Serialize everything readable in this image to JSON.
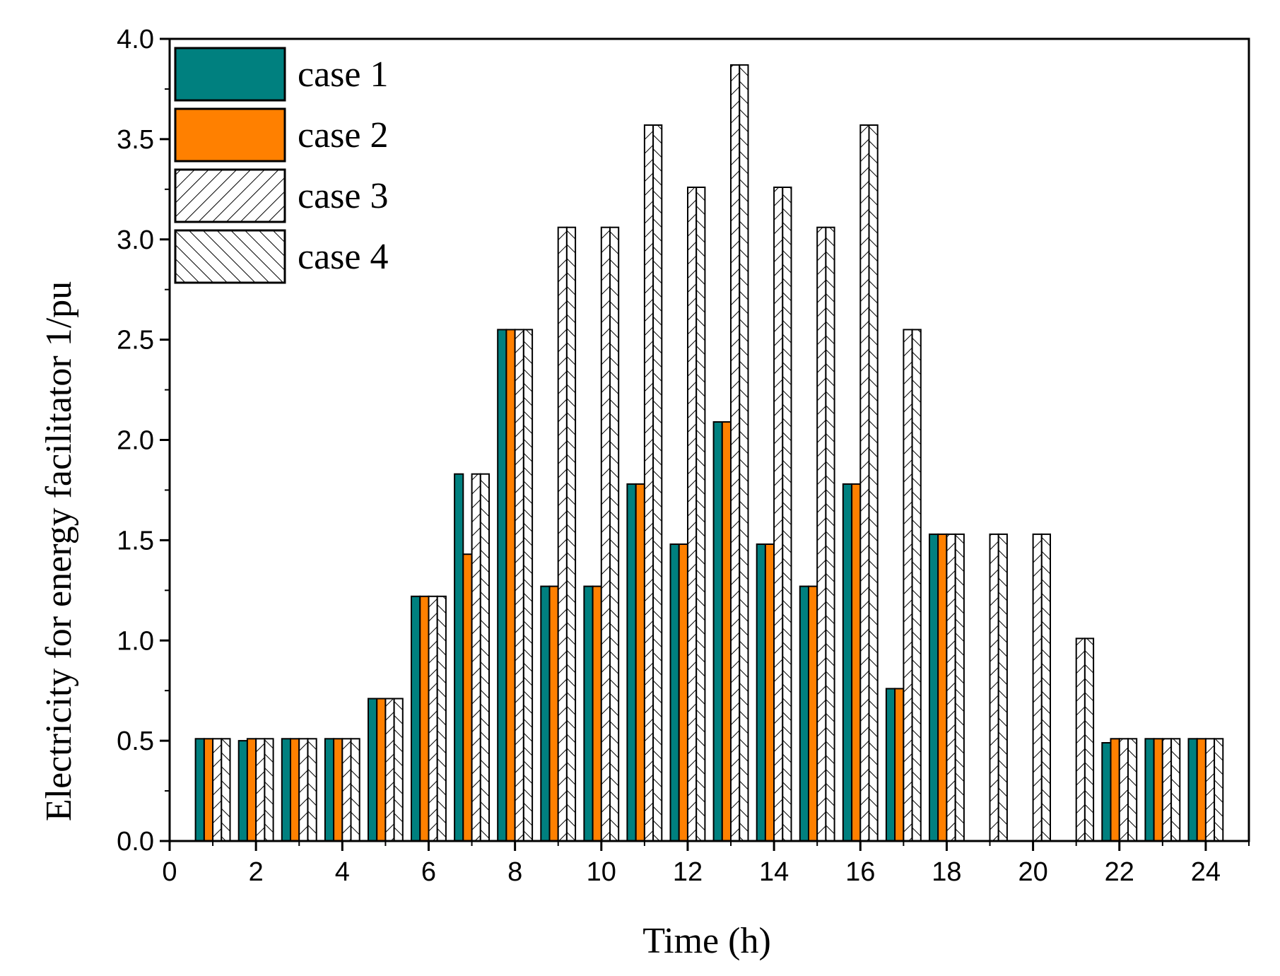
{
  "chart_data": {
    "type": "bar",
    "title": "",
    "xlabel": "Time (h)",
    "ylabel": "Electricity for energy facilitator 1/pu",
    "xlim": [
      0,
      25
    ],
    "ylim": [
      0,
      4.0
    ],
    "xticks": [
      "0",
      "2",
      "4",
      "6",
      "8",
      "10",
      "12",
      "14",
      "16",
      "18",
      "20",
      "22",
      "24"
    ],
    "yticks": [
      "0.0",
      "0.5",
      "1.0",
      "1.5",
      "2.0",
      "2.5",
      "3.0",
      "3.5",
      "4.0"
    ],
    "categories": [
      1,
      2,
      3,
      4,
      5,
      6,
      7,
      8,
      9,
      10,
      11,
      12,
      13,
      14,
      15,
      16,
      17,
      18,
      19,
      20,
      21,
      22,
      23,
      24
    ],
    "legend_position": "top-left",
    "series": [
      {
        "name": "case 1",
        "fill": "solid",
        "color": "#00807f",
        "values": [
          0.51,
          0.5,
          0.51,
          0.51,
          0.71,
          1.22,
          1.83,
          2.55,
          1.27,
          1.27,
          1.78,
          1.48,
          2.09,
          1.48,
          1.27,
          1.78,
          0.76,
          1.53,
          0.0,
          0.0,
          0.0,
          0.49,
          0.51,
          0.51
        ]
      },
      {
        "name": "case 2",
        "fill": "solid",
        "color": "#ff8000",
        "values": [
          0.51,
          0.51,
          0.51,
          0.51,
          0.71,
          1.22,
          1.43,
          2.55,
          1.27,
          1.27,
          1.78,
          1.48,
          2.09,
          1.48,
          1.27,
          1.78,
          0.76,
          1.53,
          0.0,
          0.0,
          0.0,
          0.51,
          0.51,
          0.51
        ]
      },
      {
        "name": "case 3",
        "fill": "hatch-forward",
        "color": "#ffffff",
        "values": [
          0.51,
          0.51,
          0.51,
          0.51,
          0.71,
          1.22,
          1.83,
          2.55,
          3.06,
          3.06,
          3.57,
          3.26,
          3.87,
          3.26,
          3.06,
          3.57,
          2.55,
          1.53,
          1.53,
          1.53,
          1.01,
          0.51,
          0.51,
          0.51
        ]
      },
      {
        "name": "case 4",
        "fill": "hatch-backward",
        "color": "#ffffff",
        "values": [
          0.51,
          0.51,
          0.51,
          0.51,
          0.71,
          1.22,
          1.83,
          2.55,
          3.06,
          3.06,
          3.57,
          3.26,
          3.87,
          3.26,
          3.06,
          3.57,
          2.55,
          1.53,
          1.53,
          1.53,
          1.01,
          0.51,
          0.51,
          0.51
        ]
      }
    ]
  }
}
